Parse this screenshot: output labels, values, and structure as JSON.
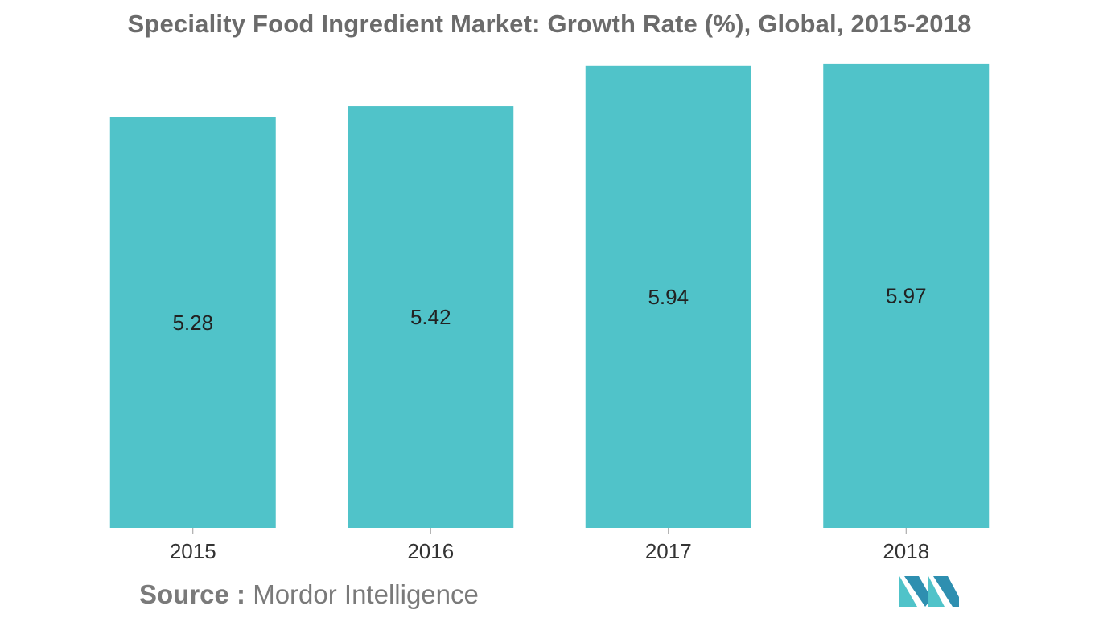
{
  "chart_data": {
    "type": "bar",
    "title": "Speciality Food Ingredient Market: Growth Rate (%), Global, 2015-2018",
    "categories": [
      "2015",
      "2016",
      "2017",
      "2018"
    ],
    "values": [
      5.28,
      5.42,
      5.94,
      5.97
    ],
    "value_labels": [
      "5.28",
      "5.42",
      "5.94",
      "5.97"
    ],
    "xlabel": "",
    "ylabel": "",
    "ylim": [
      0,
      6
    ],
    "grid": false,
    "legend": "none",
    "bar_color": "#50c3c9"
  },
  "source": {
    "label": "Source :",
    "value": "Mordor Intelligence"
  },
  "logo": {
    "icon": "mordor-intelligence-logo-icon",
    "colors": [
      "#50c3c9",
      "#1f5f8b"
    ]
  }
}
